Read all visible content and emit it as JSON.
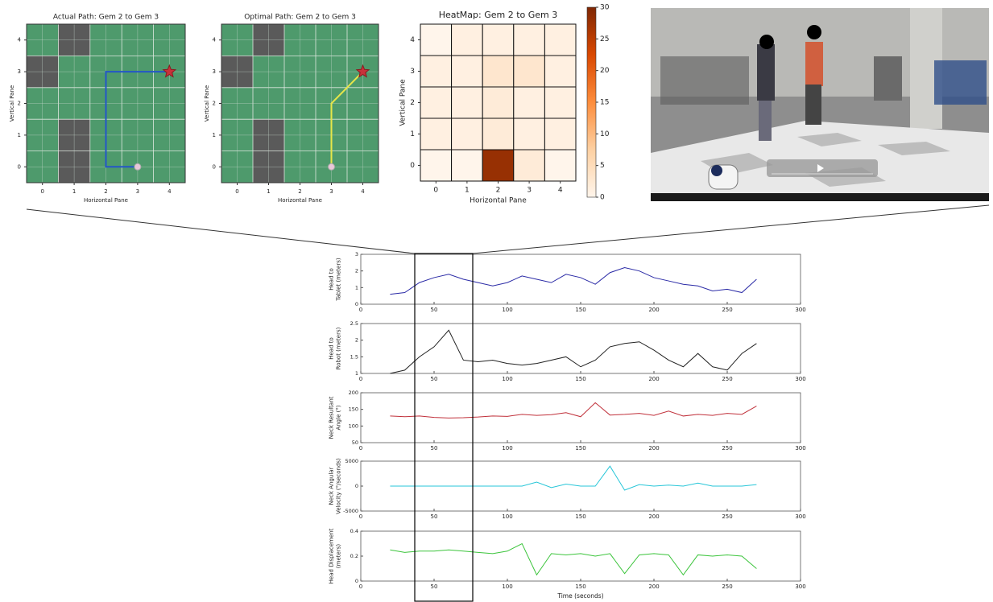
{
  "chart_data": [
    {
      "type": "grid-path",
      "title": "Actual Path: Gem 2 to Gem 3",
      "xlabel": "Horizontal Pane",
      "ylabel": "Vertical Pane",
      "xlim": [
        -0.5,
        4.5
      ],
      "ylim": [
        -0.5,
        4.5
      ],
      "xticks": [
        0,
        1,
        2,
        3,
        4
      ],
      "yticks": [
        0,
        1,
        2,
        3,
        4
      ],
      "grid": true,
      "background": "#4e9a6c",
      "obstacle_color": "#5a5a5a",
      "obstacles": [
        [
          1,
          4
        ],
        [
          0,
          3
        ],
        [
          1,
          1
        ],
        [
          1,
          0
        ]
      ],
      "path": {
        "color": "#2456c8",
        "x": [
          3,
          2,
          2,
          4
        ],
        "y": [
          0,
          0,
          3,
          3
        ]
      }
    },
    {
      "type": "grid-path",
      "title": "Optimal Path: Gem 2 to Gem 3",
      "xlabel": "Horizontal Pane",
      "ylabel": "Vertical Pane",
      "xlim": [
        -0.5,
        4.5
      ],
      "ylim": [
        -0.5,
        4.5
      ],
      "xticks": [
        0,
        1,
        2,
        3,
        4
      ],
      "yticks": [
        0,
        1,
        2,
        3,
        4
      ],
      "grid": true,
      "background": "#4e9a6c",
      "obstacle_color": "#5a5a5a",
      "obstacles": [
        [
          1,
          4
        ],
        [
          0,
          3
        ],
        [
          1,
          1
        ],
        [
          1,
          0
        ]
      ],
      "path": {
        "color": "#e6e64a",
        "x": [
          3,
          3,
          4
        ],
        "y": [
          0,
          2,
          3
        ]
      }
    },
    {
      "type": "heatmap",
      "title": "HeatMap: Gem 2 to Gem 3",
      "xlabel": "Horizontal Pane",
      "ylabel": "Vertical Pane",
      "xlim": [
        -0.5,
        4.5
      ],
      "ylim": [
        -0.5,
        4.5
      ],
      "xticks": [
        0,
        1,
        2,
        3,
        4
      ],
      "yticks": [
        0,
        1,
        2,
        3,
        4
      ],
      "z": [
        [
          0,
          0,
          28,
          2,
          0
        ],
        [
          1,
          1,
          2,
          1,
          1
        ],
        [
          1,
          1,
          2,
          1,
          1
        ],
        [
          1,
          1,
          3,
          3,
          1
        ],
        [
          0,
          1,
          1,
          1,
          1
        ]
      ],
      "clim": [
        0,
        30
      ],
      "colorbar_ticks": [
        0,
        5,
        10,
        15,
        20,
        25,
        30
      ],
      "colormap": [
        "#fff5eb",
        "#fdd0a2",
        "#fd8d3c",
        "#d94801",
        "#7f2704"
      ]
    },
    {
      "type": "line",
      "ylabel": [
        "Head to",
        "Tablet (meters)"
      ],
      "color": "#2a2aa6",
      "xlim": [
        0,
        300
      ],
      "xticks": [
        0,
        50,
        100,
        150,
        200,
        250,
        300
      ],
      "ylim": [
        0,
        3
      ],
      "yticks": [
        0,
        1,
        2,
        3
      ],
      "x": [
        20,
        30,
        40,
        50,
        60,
        70,
        80,
        90,
        100,
        110,
        120,
        130,
        140,
        150,
        160,
        170,
        180,
        190,
        200,
        210,
        220,
        230,
        240,
        250,
        260,
        270
      ],
      "values": [
        0.6,
        0.7,
        1.3,
        1.6,
        1.8,
        1.5,
        1.3,
        1.1,
        1.3,
        1.7,
        1.5,
        1.3,
        1.8,
        1.6,
        1.2,
        1.9,
        2.2,
        2.0,
        1.6,
        1.4,
        1.2,
        1.1,
        0.8,
        0.9,
        0.7,
        1.5
      ]
    },
    {
      "type": "line",
      "ylabel": [
        "Head to",
        "Robot (meters)"
      ],
      "color": "#222222",
      "xlim": [
        0,
        300
      ],
      "xticks": [
        0,
        50,
        100,
        150,
        200,
        250,
        300
      ],
      "ylim": [
        1,
        2.5
      ],
      "yticks": [
        1,
        1.5,
        2,
        2.5
      ],
      "x": [
        20,
        30,
        40,
        50,
        60,
        70,
        80,
        90,
        100,
        110,
        120,
        130,
        140,
        150,
        160,
        170,
        180,
        190,
        200,
        210,
        220,
        230,
        240,
        250,
        260,
        270
      ],
      "values": [
        1.0,
        1.1,
        1.5,
        1.8,
        2.3,
        1.4,
        1.35,
        1.4,
        1.3,
        1.25,
        1.3,
        1.4,
        1.5,
        1.2,
        1.4,
        1.8,
        1.9,
        1.95,
        1.7,
        1.4,
        1.2,
        1.6,
        1.2,
        1.1,
        1.6,
        1.9
      ]
    },
    {
      "type": "line",
      "ylabel": [
        "Neck Resultant",
        "Angle (°)"
      ],
      "color": "#c0303a",
      "xlim": [
        0,
        300
      ],
      "xticks": [
        0,
        50,
        100,
        150,
        200,
        250,
        300
      ],
      "ylim": [
        50,
        200
      ],
      "yticks": [
        50,
        100,
        150,
        200
      ],
      "x": [
        20,
        30,
        40,
        50,
        60,
        70,
        80,
        90,
        100,
        110,
        120,
        130,
        140,
        150,
        160,
        170,
        180,
        190,
        200,
        210,
        220,
        230,
        240,
        250,
        260,
        270
      ],
      "values": [
        130,
        128,
        130,
        126,
        124,
        125,
        127,
        130,
        129,
        135,
        132,
        134,
        140,
        128,
        170,
        133,
        135,
        138,
        132,
        145,
        130,
        135,
        132,
        138,
        135,
        160
      ]
    },
    {
      "type": "line",
      "ylabel": [
        "Neck Angular",
        "Velocity (°/seconds)"
      ],
      "color": "#27c6d8",
      "xlim": [
        0,
        300
      ],
      "xticks": [
        0,
        50,
        100,
        150,
        200,
        250,
        300
      ],
      "ylim": [
        -5000,
        5000
      ],
      "yticks": [
        -5000,
        0,
        5000
      ],
      "x": [
        20,
        30,
        40,
        50,
        60,
        70,
        80,
        90,
        100,
        110,
        120,
        130,
        140,
        150,
        160,
        170,
        180,
        190,
        200,
        210,
        220,
        230,
        240,
        250,
        260,
        270
      ],
      "values": [
        0,
        0,
        0,
        0,
        0,
        0,
        0,
        0,
        0,
        0,
        800,
        -300,
        400,
        0,
        0,
        4000,
        -800,
        300,
        0,
        200,
        0,
        600,
        0,
        0,
        0,
        300
      ]
    },
    {
      "type": "line",
      "ylabel": [
        "Head Displacement",
        "(meters)"
      ],
      "xlabel": "Time (seconds)",
      "color": "#3bc43b",
      "xlim": [
        0,
        300
      ],
      "xticks": [
        0,
        50,
        100,
        150,
        200,
        250,
        300
      ],
      "ylim": [
        0,
        0.4
      ],
      "yticks": [
        0,
        0.2,
        0.4
      ],
      "x": [
        20,
        30,
        40,
        50,
        60,
        70,
        80,
        90,
        100,
        110,
        120,
        130,
        140,
        150,
        160,
        170,
        180,
        190,
        200,
        210,
        220,
        230,
        240,
        250,
        260,
        270
      ],
      "values": [
        0.25,
        0.23,
        0.24,
        0.24,
        0.25,
        0.24,
        0.23,
        0.22,
        0.24,
        0.3,
        0.05,
        0.22,
        0.21,
        0.22,
        0.2,
        0.22,
        0.06,
        0.21,
        0.22,
        0.21,
        0.05,
        0.21,
        0.2,
        0.21,
        0.2,
        0.1
      ]
    }
  ]
}
